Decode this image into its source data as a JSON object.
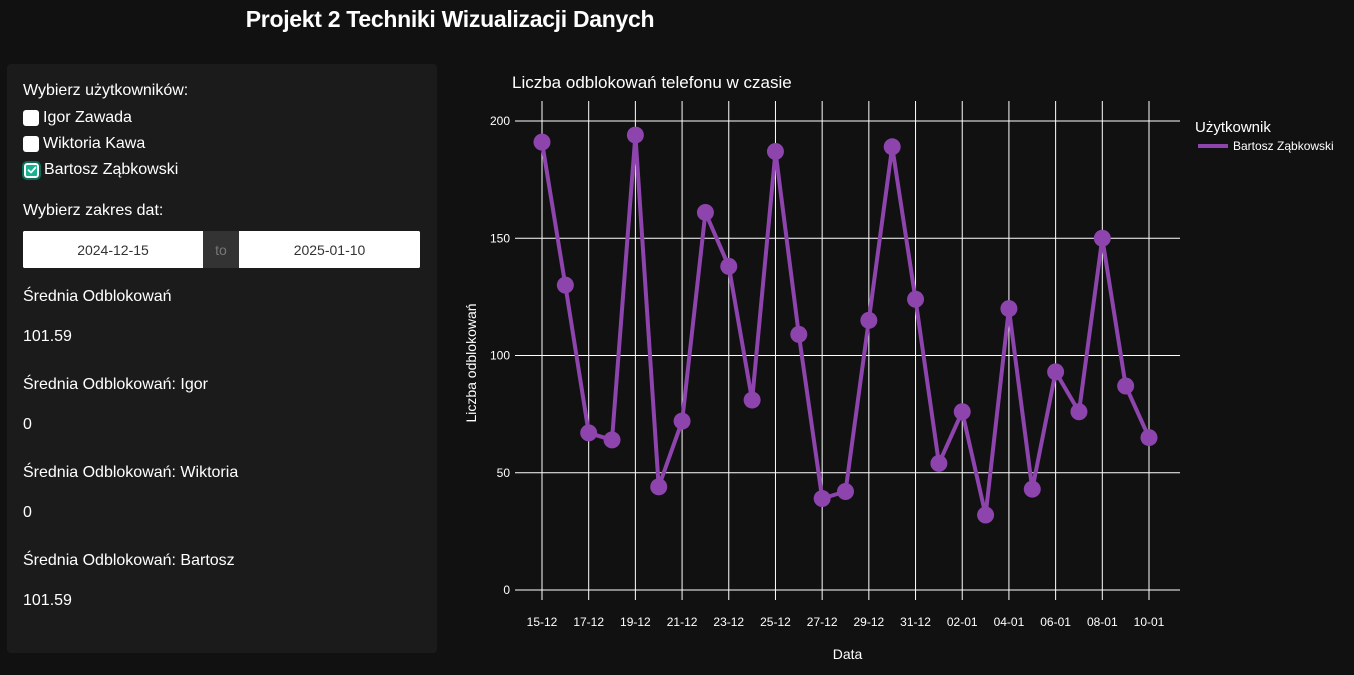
{
  "page": {
    "title": "Projekt 2 Techniki Wizualizacji Danych"
  },
  "sidebar": {
    "users_label": "Wybierz użytkowników:",
    "users": [
      {
        "label": "Igor Zawada",
        "checked": false
      },
      {
        "label": "Wiktoria Kawa",
        "checked": false
      },
      {
        "label": "Bartosz Ząbkowski",
        "checked": true
      }
    ],
    "date_label": "Wybierz zakres dat:",
    "date_start": "2024-12-15",
    "date_sep": "to",
    "date_end": "2025-01-10",
    "stats": [
      {
        "label": "Średnia Odblokowań",
        "value": "101.59"
      },
      {
        "label": "Średnia Odblokowań: Igor",
        "value": "0"
      },
      {
        "label": "Średnia Odblokowań: Wiktoria",
        "value": "0"
      },
      {
        "label": "Średnia Odblokowań: Bartosz",
        "value": "101.59"
      }
    ]
  },
  "chart_data": {
    "type": "line",
    "title": "Liczba odblokowań telefonu w czasie",
    "xlabel": "Data",
    "ylabel": "Liczba odblokowań",
    "ylim": [
      0,
      200
    ],
    "yticks": [
      0,
      50,
      100,
      150,
      200
    ],
    "grid": true,
    "legend_title": "Użytkownik",
    "legend_position": "top-right",
    "x": [
      "15-12",
      "16-12",
      "17-12",
      "18-12",
      "19-12",
      "20-12",
      "21-12",
      "22-12",
      "23-12",
      "24-12",
      "25-12",
      "26-12",
      "27-12",
      "28-12",
      "29-12",
      "30-12",
      "31-12",
      "01-01",
      "02-01",
      "03-01",
      "04-01",
      "05-01",
      "06-01",
      "07-01",
      "08-01",
      "09-01",
      "10-01"
    ],
    "xticks": [
      "15-12",
      "17-12",
      "19-12",
      "21-12",
      "23-12",
      "25-12",
      "27-12",
      "29-12",
      "31-12",
      "02-01",
      "04-01",
      "06-01",
      "08-01",
      "10-01"
    ],
    "series": [
      {
        "name": "Bartosz Ząbkowski",
        "color": "#8e44ad",
        "values": [
          191,
          130,
          67,
          64,
          194,
          44,
          72,
          161,
          138,
          81,
          187,
          109,
          39,
          42,
          115,
          189,
          124,
          54,
          76,
          32,
          120,
          43,
          93,
          76,
          150,
          87,
          65
        ]
      }
    ]
  }
}
